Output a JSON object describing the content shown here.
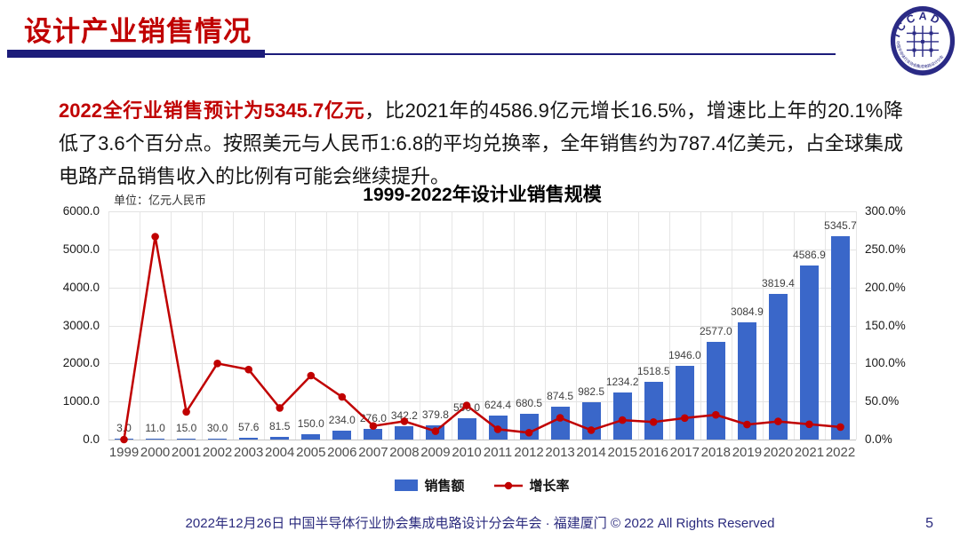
{
  "header": {
    "title": "设计产业销售情况",
    "logo": {
      "text": "ICCAD",
      "ring_text": "中国半导体行业协会集成电路设计分会"
    },
    "page_number": "5"
  },
  "paragraph": {
    "highlight": "2022全行业销售预计为5345.7亿元",
    "rest": "，比2021年的4586.9亿元增长16.5%，增速比上年的20.1%降低了3.6个百分点。按照美元与人民币1:6.8的平均兑换率，全年销售约为787.4亿美元，占全球集成电路产品销售收入的比例有可能会继续提升。"
  },
  "chart_data": {
    "type": "bar",
    "title": "1999-2022年设计业销售规模",
    "unit_label": "单位：亿元人民币",
    "categories": [
      "1999",
      "2000",
      "2001",
      "2002",
      "2003",
      "2004",
      "2005",
      "2006",
      "2007",
      "2008",
      "2009",
      "2010",
      "2011",
      "2012",
      "2013",
      "2014",
      "2015",
      "2016",
      "2017",
      "2018",
      "2019",
      "2020",
      "2021",
      "2022"
    ],
    "series": [
      {
        "name": "销售额",
        "type": "bar",
        "color": "#3A67C9",
        "axis": "left",
        "values": [
          3.0,
          11.0,
          15.0,
          30.0,
          57.6,
          81.5,
          150.0,
          234.0,
          276.0,
          342.2,
          379.8,
          550.0,
          624.4,
          680.5,
          874.5,
          982.5,
          1234.2,
          1518.5,
          1946.0,
          2577.0,
          3084.9,
          3819.4,
          4586.9,
          5345.7
        ],
        "labels": [
          "3.0",
          "11.0",
          "15.0",
          "30.0",
          "57.6",
          "81.5",
          "150.0",
          "234.0",
          "276.0",
          "342.2",
          "379.8",
          "550.0",
          "624.4",
          "680.5",
          "874.5",
          "982.5",
          "1234.2",
          "1518.5",
          "1946.0",
          "2577.0",
          "3084.9",
          "3819.4",
          "4586.9",
          "5345.7"
        ]
      },
      {
        "name": "增长率",
        "type": "line",
        "color": "#C00000",
        "axis": "right",
        "values": [
          0.0,
          266.7,
          36.4,
          100.0,
          92.0,
          41.5,
          84.0,
          56.0,
          17.9,
          24.0,
          11.0,
          44.8,
          13.5,
          9.0,
          28.5,
          12.4,
          25.6,
          23.0,
          28.2,
          32.4,
          19.7,
          23.8,
          20.1,
          16.5
        ]
      }
    ],
    "left_axis": {
      "min": 0,
      "max": 6000,
      "step": 1000,
      "labels": [
        "0.0",
        "1000.0",
        "2000.0",
        "3000.0",
        "4000.0",
        "5000.0",
        "6000.0"
      ]
    },
    "right_axis": {
      "min": 0,
      "max": 300,
      "step": 50,
      "labels": [
        "0.0%",
        "50.0%",
        "100.0%",
        "150.0%",
        "200.0%",
        "250.0%",
        "300.0%"
      ]
    },
    "legend": [
      "销售额",
      "增长率"
    ],
    "grid": true,
    "legend_position": "bottom"
  },
  "footer": {
    "text": "2022年12月26日 中国半导体行业协会集成电路设计分会年会 · 福建厦门 © 2022 All Rights Reserved"
  },
  "colors": {
    "accent_red": "#C00000",
    "navy": "#1C1C7A",
    "bar_blue": "#3A67C9",
    "line_red": "#C00000"
  }
}
